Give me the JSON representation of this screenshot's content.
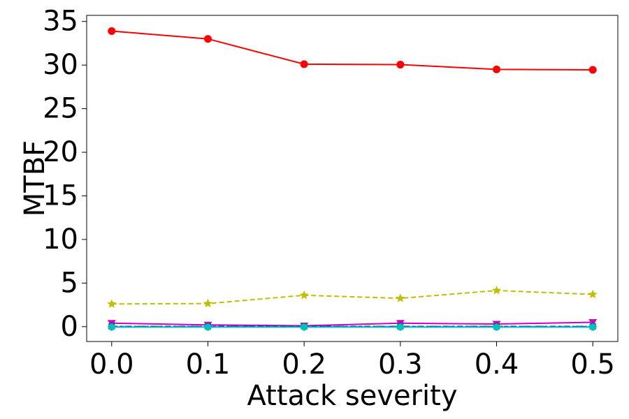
{
  "chart_data": {
    "type": "line",
    "title": "",
    "xlabel": "Attack severity",
    "ylabel": "MTBF",
    "x": [
      0.0,
      0.1,
      0.2,
      0.3,
      0.4,
      0.5
    ],
    "x_tick_labels": [
      "0.0",
      "0.1",
      "0.2",
      "0.3",
      "0.4",
      "0.5"
    ],
    "xlim": [
      -0.026,
      0.526
    ],
    "y_ticks": [
      0,
      5,
      10,
      15,
      20,
      25,
      30,
      35
    ],
    "y_tick_labels": [
      "0",
      "5",
      "10",
      "15",
      "20",
      "25",
      "30",
      "35"
    ],
    "ylim": [
      -1.7,
      35.7
    ],
    "grid": false,
    "legend": "none",
    "series": [
      {
        "color": "#ff0000",
        "line_style": "solid",
        "marker": "circle",
        "values": [
          33.9,
          33.0,
          30.1,
          30.05,
          29.5,
          29.45
        ]
      },
      {
        "color": "#bfbf00",
        "line_style": "dashed",
        "marker": "star",
        "values": [
          2.6,
          2.65,
          3.6,
          3.25,
          4.15,
          3.7
        ]
      },
      {
        "color": "#cc00cc",
        "line_style": "solid",
        "marker": "triangle-down",
        "values": [
          0.4,
          0.2,
          0.1,
          0.4,
          0.3,
          0.5
        ]
      },
      {
        "color": "#008000",
        "line_style": "dashdot",
        "marker": "square",
        "values": [
          0.02,
          0.02,
          0.02,
          0.02,
          0.02,
          0.02
        ]
      },
      {
        "color": "#0000ff",
        "line_style": "dashed",
        "marker": "diamond",
        "values": [
          0.0,
          0.0,
          0.0,
          0.0,
          0.0,
          0.0
        ]
      },
      {
        "color": "#00bfbf",
        "line_style": "solid",
        "marker": "hexagon",
        "values": [
          -0.05,
          -0.05,
          -0.05,
          -0.05,
          -0.05,
          -0.05
        ]
      }
    ]
  }
}
